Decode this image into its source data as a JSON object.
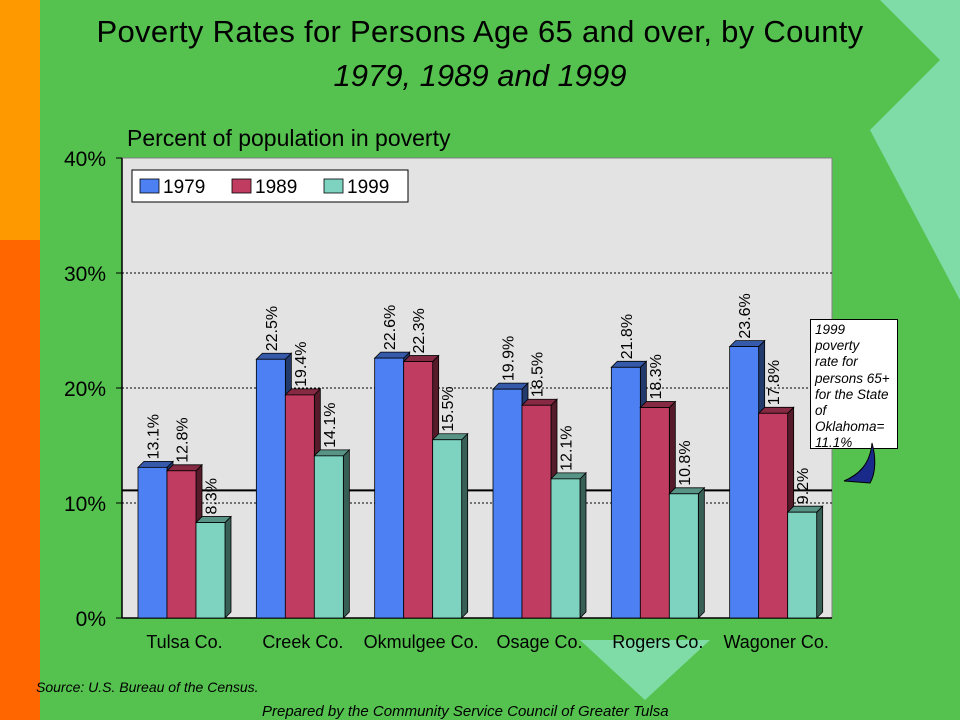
{
  "title": "Poverty Rates for Persons Age 65 and over, by County",
  "subtitle": "1979, 1989 and 1999",
  "source": "Source:  U.S. Bureau of the Census.",
  "prepared_by": "Prepared by the Community Service Council of Greater Tulsa",
  "annotation": {
    "lines": [
      "1999 poverty",
      "rate for",
      "persons 65+",
      "for the State",
      "of",
      "Oklahoma=",
      "11.1%"
    ],
    "state_rate": 11.1
  },
  "colors": {
    "1979": "#4d80f3",
    "1989": "#c03c60",
    "1999": "#7dd3c0",
    "plot_bg": "#e3e3e3",
    "bg_green": "#55c24f",
    "bg_light": "#7fdca6"
  },
  "chart_data": {
    "type": "bar",
    "title": "Poverty Rates for Persons Age 65 and over, by County",
    "subtitle": "1979, 1989 and 1999",
    "ylabel": "Percent of population in poverty",
    "xlabel": "",
    "ylim": [
      0,
      40
    ],
    "yticks": [
      "0%",
      "10%",
      "20%",
      "30%",
      "40%"
    ],
    "ytick_values": [
      0,
      10,
      20,
      30,
      40
    ],
    "grid": true,
    "legend_position": "top-left",
    "reference_line": 11.1,
    "categories": [
      "Tulsa Co.",
      "Creek Co.",
      "Okmulgee Co.",
      "Osage Co.",
      "Rogers Co.",
      "Wagoner Co."
    ],
    "series": [
      {
        "name": "1979",
        "values": [
          13.1,
          22.5,
          22.6,
          19.9,
          21.8,
          23.6
        ],
        "labels": [
          "13.1%",
          "22.5%",
          "22.6%",
          "19.9%",
          "21.8%",
          "23.6%"
        ]
      },
      {
        "name": "1989",
        "values": [
          12.8,
          19.4,
          22.3,
          18.5,
          18.3,
          17.8
        ],
        "labels": [
          "12.8%",
          "19.4%",
          "22.3%",
          "18.5%",
          "18.3%",
          "17.8%"
        ]
      },
      {
        "name": "1999",
        "values": [
          8.3,
          14.1,
          15.5,
          12.1,
          10.8,
          9.2
        ],
        "labels": [
          "8.3%",
          "14.1%",
          "15.5%",
          "12.1%",
          "10.8%",
          "9.2%"
        ]
      }
    ]
  }
}
